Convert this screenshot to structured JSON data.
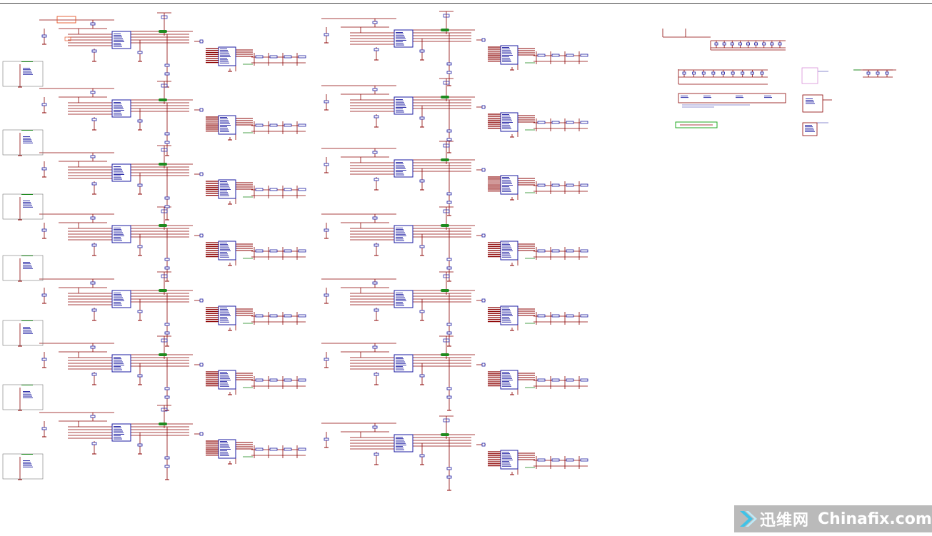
{
  "sheet": {
    "wire_color": "#8b0000",
    "part_color": "#1a1aa0",
    "net_color": "#1e8a1e",
    "highlight_color": "#e5572a",
    "background": "#ffffff"
  },
  "watermark": {
    "brand_cn": "迅维网",
    "brand_en": "Chinafix.com",
    "arrow_color": "#3fc3e8"
  }
}
